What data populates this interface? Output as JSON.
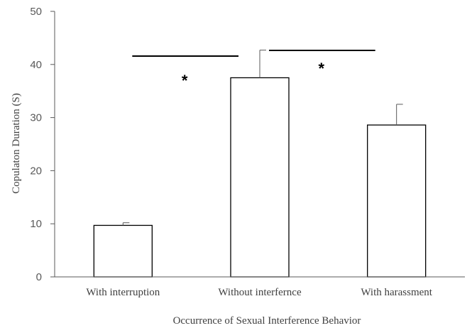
{
  "chart_data": {
    "type": "bar",
    "categories": [
      "With interruption",
      "Without interfernce",
      "With harassment"
    ],
    "values": [
      9.7,
      37.5,
      28.6
    ],
    "error_bars": [
      0.5,
      5.2,
      3.9
    ],
    "xlabel": "Occurrence of Sexual Interference Behavior",
    "ylabel": "Copulaton Duration (S)",
    "ylim": [
      0,
      50
    ],
    "yticks": [
      0,
      10,
      20,
      30,
      40,
      50
    ],
    "grid": false,
    "legend": "none",
    "significance": [
      {
        "from": 0,
        "to": 1,
        "label": "*"
      },
      {
        "from": 1,
        "to": 2,
        "label": "*"
      }
    ],
    "colors": {
      "bar_fill": "#ffffff",
      "bar_stroke": "#000000",
      "axis": "#595959",
      "error": "#595959"
    }
  }
}
